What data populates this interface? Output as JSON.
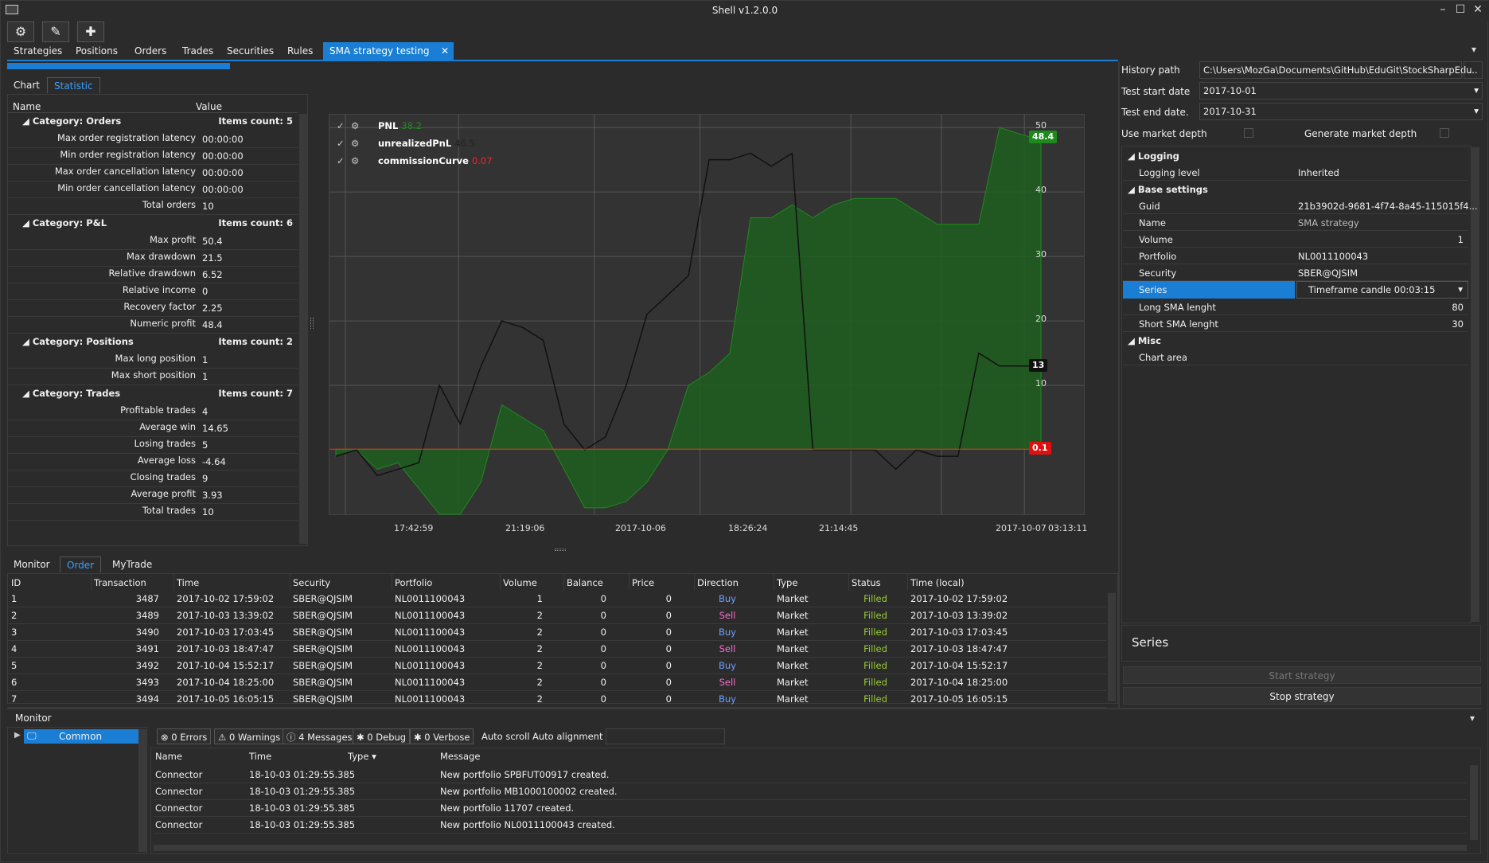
{
  "window": {
    "title": "Shell v1.2.0.0"
  },
  "toolbar": {
    "icons": [
      "gear-icon",
      "wrench-icon",
      "plus-icon"
    ]
  },
  "tabs": [
    {
      "label": "Strategies"
    },
    {
      "label": "Positions"
    },
    {
      "label": "Orders"
    },
    {
      "label": "Trades"
    },
    {
      "label": "Securities"
    },
    {
      "label": "Rules"
    },
    {
      "label": "SMA strategy testing"
    }
  ],
  "subtabs": {
    "chart": "Chart",
    "statistic": "Statistic"
  },
  "stats": {
    "col_name": "Name",
    "col_value": "Value",
    "orders": {
      "title": "Category: Orders",
      "count": "Items count: 5",
      "rows": [
        [
          "Max order registration latency",
          "00:00:00"
        ],
        [
          "Min order registration latency",
          "00:00:00"
        ],
        [
          "Max order cancellation latency",
          "00:00:00"
        ],
        [
          "Min order cancellation latency",
          "00:00:00"
        ],
        [
          "Total orders",
          "10"
        ]
      ]
    },
    "pnl": {
      "title": "Category: P&L",
      "count": "Items count: 6",
      "rows": [
        [
          "Max profit",
          "50.4"
        ],
        [
          "Max drawdown",
          "21.5"
        ],
        [
          "Relative drawdown",
          "6.52"
        ],
        [
          "Relative income",
          "0"
        ],
        [
          "Recovery factor",
          "2.25"
        ],
        [
          "Numeric profit",
          "48.4"
        ]
      ]
    },
    "positions": {
      "title": "Category: Positions",
      "count": "Items count: 2",
      "rows": [
        [
          "Max long position",
          "1"
        ],
        [
          "Max short position",
          "1"
        ]
      ]
    },
    "trades": {
      "title": "Category: Trades",
      "count": "Items count: 7",
      "rows": [
        [
          "Profitable trades",
          "4"
        ],
        [
          "Average win",
          "14.65"
        ],
        [
          "Losing trades",
          "5"
        ],
        [
          "Average loss",
          "-4.64"
        ],
        [
          "Closing trades",
          "9"
        ],
        [
          "Average profit",
          "3.93"
        ],
        [
          "Total trades",
          "10"
        ]
      ]
    }
  },
  "chart_data": {
    "type": "line",
    "legend": [
      {
        "name": "PNL",
        "value": "38.2",
        "color": "#1e8a1e"
      },
      {
        "name": "unrealizedPnL",
        "value": "46.5",
        "color": "#222222"
      },
      {
        "name": "commissionCurve",
        "value": "0.07",
        "color": "#ff2020"
      }
    ],
    "y_ticks": [
      10,
      20,
      30,
      40,
      50
    ],
    "ylim": [
      -10,
      52
    ],
    "x_ticks": [
      "17:42:59",
      "21:19:06",
      "2017-10-06",
      "18:26:24",
      "21:14:45",
      "2017-10-07",
      "03:13:11"
    ],
    "badges": {
      "pnl": "48.4",
      "unrealized": "13",
      "commission": "0.1"
    },
    "series": [
      {
        "name": "PNL",
        "color": "#1e8a1e",
        "values": [
          -1,
          0,
          -3,
          -2,
          -6,
          -10,
          -10,
          -5,
          7,
          5,
          3,
          -3,
          -9,
          -9,
          -8,
          -5,
          0,
          10,
          12,
          15,
          36,
          36,
          38,
          36,
          38,
          39,
          39,
          39,
          37,
          35,
          35,
          35,
          50,
          49,
          48
        ]
      },
      {
        "name": "unrealizedPnL",
        "color": "#111111",
        "values": [
          -1,
          0,
          -4,
          -3,
          -2,
          10,
          4,
          13,
          20,
          19,
          17,
          4,
          0,
          2,
          10,
          21,
          24,
          27,
          45,
          45,
          46,
          44,
          46,
          0,
          0,
          0,
          0,
          -3,
          0,
          -1,
          -1,
          15,
          13,
          13,
          13
        ]
      },
      {
        "name": "commissionCurve",
        "color": "#ff2020",
        "values": [
          0.1,
          0.1,
          0.1,
          0.1,
          0.1,
          0.1,
          0.1,
          0.1,
          0.1,
          0.1,
          0.1,
          0.1,
          0.1,
          0.1,
          0.1,
          0.1,
          0.1,
          0.1,
          0.1,
          0.1,
          0.1,
          0.1,
          0.1,
          0.1,
          0.1,
          0.1,
          0.1,
          0.1,
          0.1,
          0.1,
          0.1,
          0.1,
          0.1,
          0.1,
          0.1
        ]
      }
    ]
  },
  "bottom_tabs": {
    "monitor": "Monitor",
    "order": "Order",
    "mytrade": "MyTrade"
  },
  "orders": {
    "headers": [
      "ID",
      "Transaction",
      "Time",
      "Security",
      "Portfolio",
      "Volume",
      "Balance",
      "Price",
      "Direction",
      "Type",
      "Status",
      "Time (local)"
    ],
    "rows": [
      [
        "1",
        "3487",
        "2017-10-02 17:59:02",
        "SBER@QJSIM",
        "NL0011100043",
        "1",
        "0",
        "0",
        "Buy",
        "Market",
        "Filled",
        "2017-10-02 17:59:02"
      ],
      [
        "2",
        "3489",
        "2017-10-03 13:39:02",
        "SBER@QJSIM",
        "NL0011100043",
        "2",
        "0",
        "0",
        "Sell",
        "Market",
        "Filled",
        "2017-10-03 13:39:02"
      ],
      [
        "3",
        "3490",
        "2017-10-03 17:03:45",
        "SBER@QJSIM",
        "NL0011100043",
        "2",
        "0",
        "0",
        "Buy",
        "Market",
        "Filled",
        "2017-10-03 17:03:45"
      ],
      [
        "4",
        "3491",
        "2017-10-03 18:47:47",
        "SBER@QJSIM",
        "NL0011100043",
        "2",
        "0",
        "0",
        "Sell",
        "Market",
        "Filled",
        "2017-10-03 18:47:47"
      ],
      [
        "5",
        "3492",
        "2017-10-04 15:52:17",
        "SBER@QJSIM",
        "NL0011100043",
        "2",
        "0",
        "0",
        "Buy",
        "Market",
        "Filled",
        "2017-10-04 15:52:17"
      ],
      [
        "6",
        "3493",
        "2017-10-04 18:25:00",
        "SBER@QJSIM",
        "NL0011100043",
        "2",
        "0",
        "0",
        "Sell",
        "Market",
        "Filled",
        "2017-10-04 18:25:00"
      ],
      [
        "7",
        "3494",
        "2017-10-05 16:05:15",
        "SBER@QJSIM",
        "NL0011100043",
        "2",
        "0",
        "0",
        "Buy",
        "Market",
        "Filled",
        "2017-10-05 16:05:15"
      ]
    ]
  },
  "settings": {
    "history_path_label": "History path",
    "history_path": "C:\\Users\\MozGa\\Documents\\GitHub\\EduGit\\StockSharpEdu",
    "browse": "...",
    "start_label": "Test start date",
    "start": "2017-10-01",
    "end_label": "Test end date.",
    "end": "2017-10-31",
    "market_depth": "Use market depth",
    "gen_depth": "Generate market depth"
  },
  "props": {
    "logging": "Logging",
    "logging_level_k": "Logging level",
    "logging_level_v": "Inherited",
    "base": "Base settings",
    "guid_k": "Guid",
    "guid_v": "21b3902d-9681-4f74-8a45-115015f4...",
    "name_k": "Name",
    "name_v": "SMA strategy",
    "volume_k": "Volume",
    "volume_v": "1",
    "portfolio_k": "Portfolio",
    "portfolio_v": "NL0011100043",
    "security_k": "Security",
    "security_v": "SBER@QJSIM",
    "series_k": "Series",
    "series_v": "Timeframe candle 00:03:15",
    "long_k": "Long SMA lenght",
    "long_v": "80",
    "short_k": "Short SMA lenght",
    "short_v": "30",
    "misc": "Misc",
    "chart_area_k": "Chart area",
    "desc": "Series",
    "start_btn": "Start strategy",
    "stop_btn": "Stop strategy"
  },
  "monitor": {
    "title": "Monitor",
    "tree_item": "Common",
    "errors": "0 Errors",
    "warnings": "0 Warnings",
    "messages": "4 Messages",
    "debug": "0 Debug",
    "verbose": "0 Verbose",
    "autoscroll": "Auto scroll",
    "autoalign": "Auto alignment",
    "headers": [
      "Name",
      "Time",
      "Type",
      "Message"
    ],
    "rows": [
      [
        "Connector",
        "18-10-03 01:29:55.385",
        "",
        "New portfolio SPBFUT00917 created."
      ],
      [
        "Connector",
        "18-10-03 01:29:55.385",
        "",
        "New portfolio MB1000100002 created."
      ],
      [
        "Connector",
        "18-10-03 01:29:55.385",
        "",
        "New portfolio 11707 created."
      ],
      [
        "Connector",
        "18-10-03 01:29:55.385",
        "",
        "New portfolio NL0011100043 created."
      ]
    ]
  }
}
